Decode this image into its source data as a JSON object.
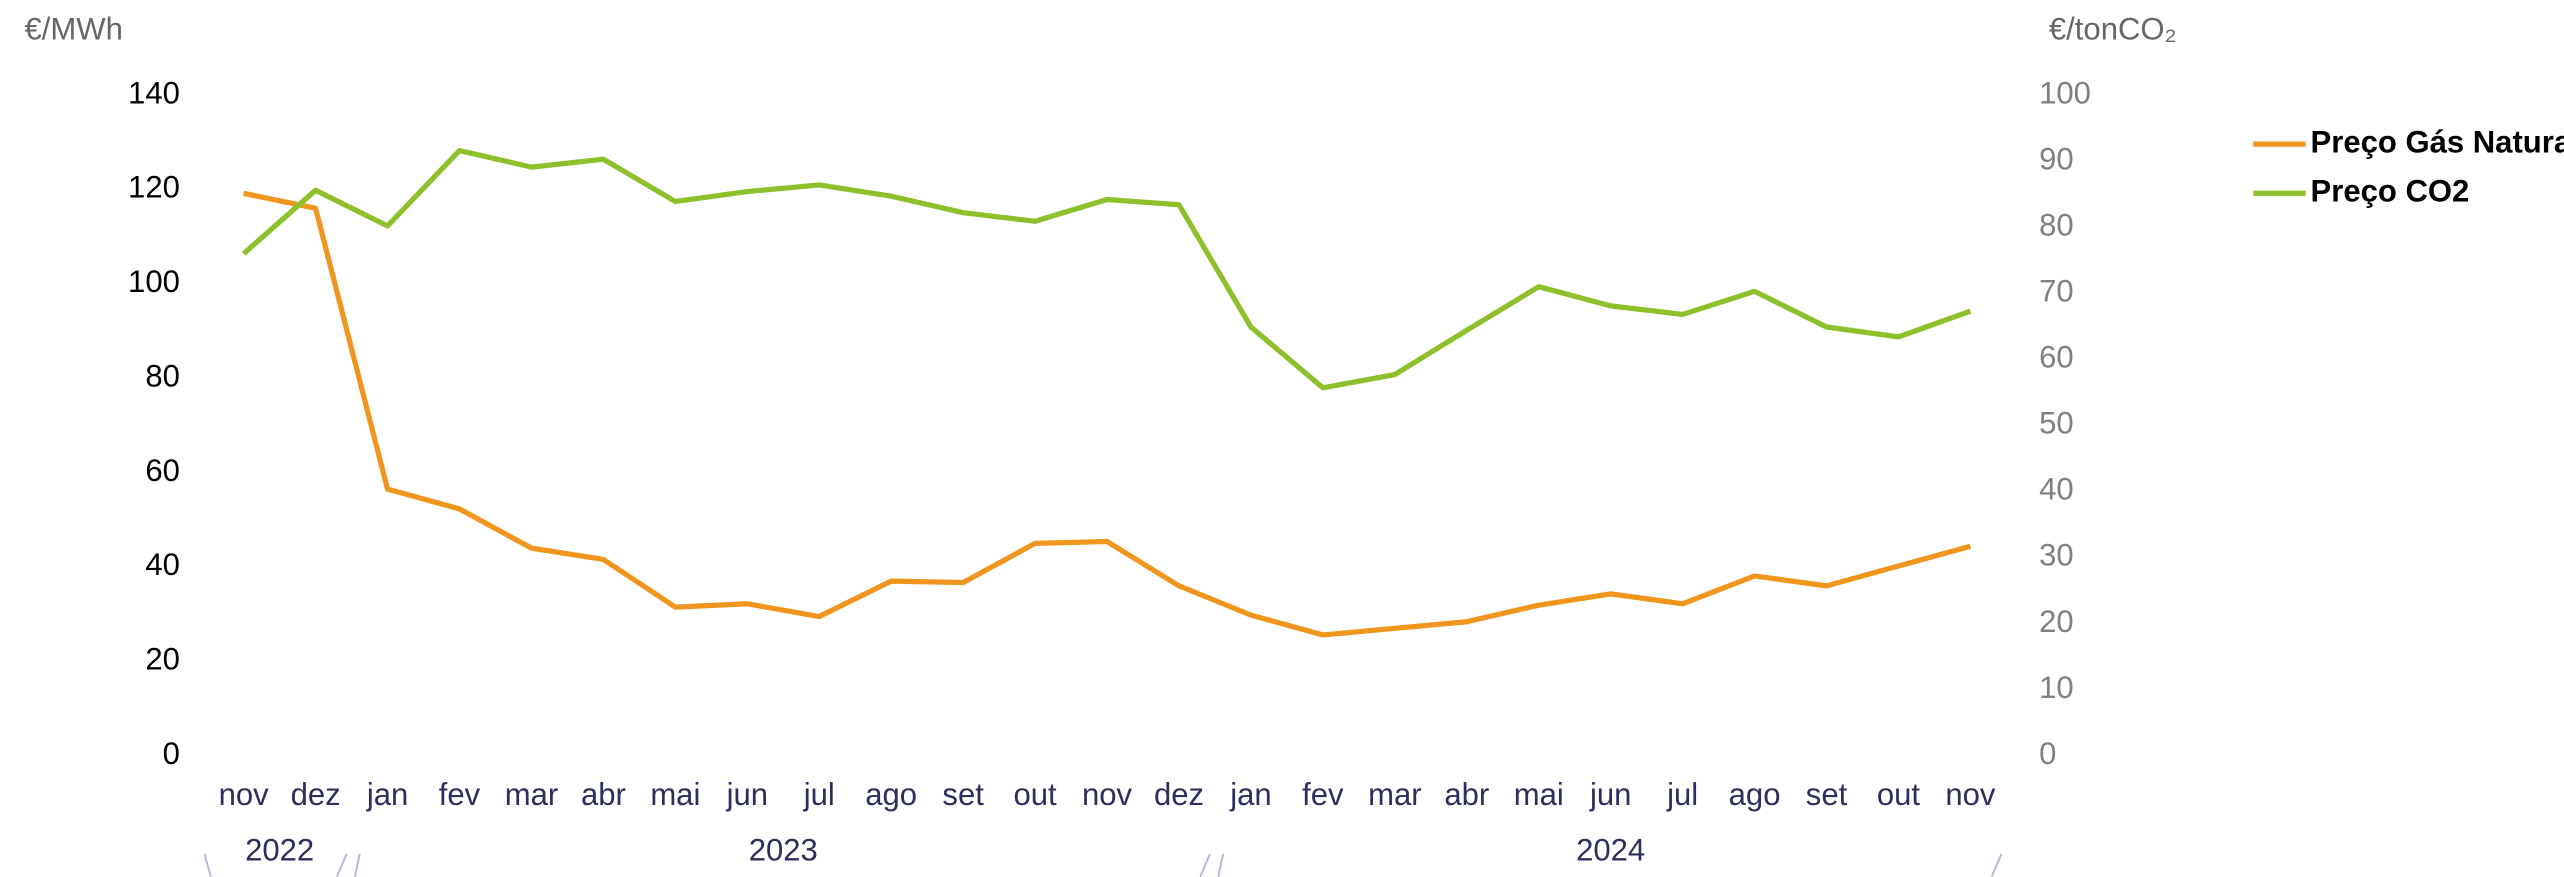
{
  "chart_data": {
    "type": "line",
    "y_label": "€/MWh",
    "y2_label": "€/tonCO₂",
    "categories": [
      "nov",
      "dez",
      "jan",
      "fev",
      "mar",
      "abr",
      "mai",
      "jun",
      "jul",
      "ago",
      "set",
      "out",
      "nov",
      "dez",
      "jan",
      "fev",
      "mar",
      "abr",
      "mai",
      "jun",
      "jul",
      "ago",
      "set",
      "out",
      "nov"
    ],
    "year_groups": [
      {
        "label": "2022",
        "count": 2
      },
      {
        "label": "2023",
        "count": 12
      },
      {
        "label": "2024",
        "count": 11
      }
    ],
    "series": [
      {
        "name": "Preço Gás Natural",
        "color": "#f0961e",
        "axis": "y",
        "values": [
          119.2,
          116,
          56.5,
          52.3,
          44,
          41.6,
          31.5,
          32.2,
          29.5,
          37,
          36.7,
          45,
          45.4,
          36,
          29.8,
          25.6,
          27,
          28.4,
          31.9,
          34.3,
          32.2,
          38.1,
          36,
          40.2,
          44.4
        ]
      },
      {
        "name": "Preço CO2",
        "color": "#8dc02a",
        "axis": "y2",
        "values": [
          76,
          85.6,
          80.2,
          91.6,
          89.1,
          90.3,
          83.9,
          85.4,
          86.4,
          84.7,
          82.2,
          80.9,
          84.2,
          83.4,
          64.9,
          55.7,
          57.7,
          64.4,
          71,
          68.1,
          66.8,
          70.3,
          64.9,
          63.4,
          67.3
        ]
      }
    ],
    "ylim": [
      0,
      140
    ],
    "yticks": [
      0,
      20,
      40,
      60,
      80,
      100,
      120,
      140
    ],
    "y2lim": [
      0,
      100
    ],
    "y2ticks": [
      0,
      10,
      20,
      30,
      40,
      50,
      60,
      70,
      80,
      90,
      100
    ],
    "legend": "right"
  }
}
